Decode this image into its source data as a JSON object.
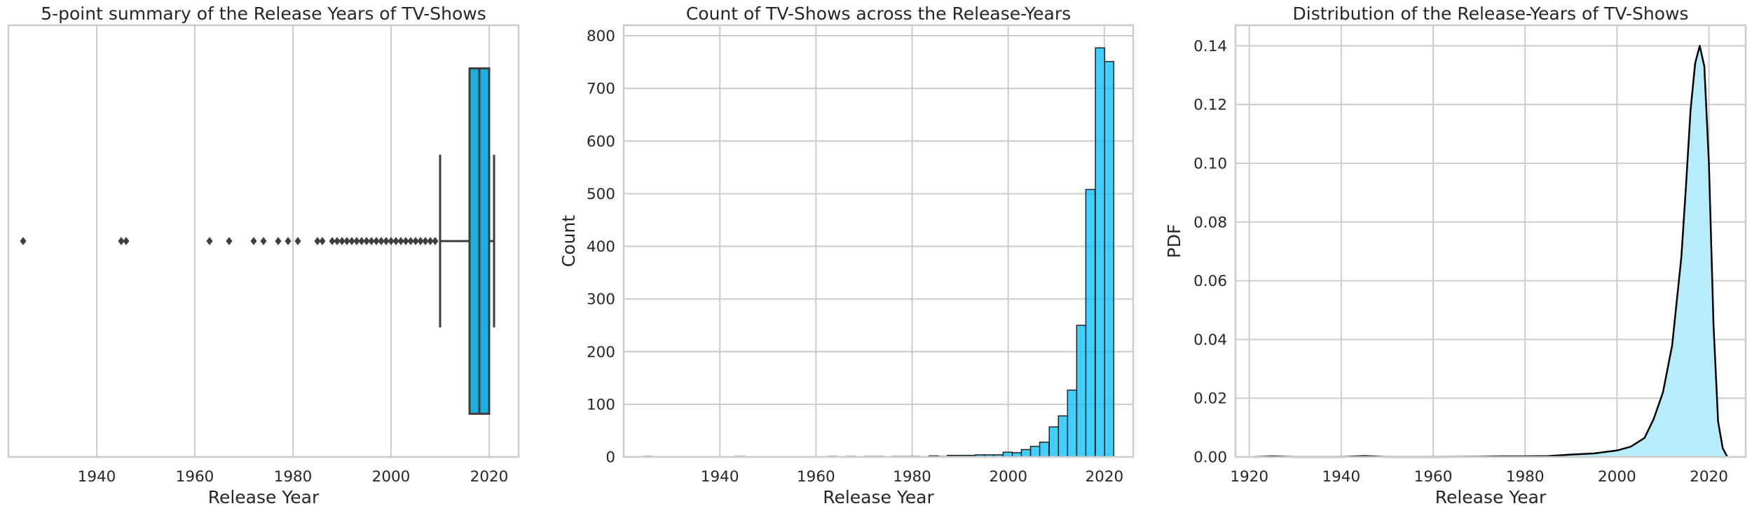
{
  "chart_data": [
    {
      "type": "box",
      "title": "5-point summary of the Release Years of TV-Shows",
      "xlabel": "Release Year",
      "ylabel": "",
      "xlim": [
        1922,
        2026
      ],
      "xticks": [
        1940,
        1960,
        1980,
        2000,
        2020
      ],
      "grid": true,
      "color": "#1aafe0",
      "box": {
        "q1": 2016,
        "median": 2018,
        "q3": 2020,
        "whisker_low": 2010,
        "whisker_high": 2021
      },
      "outliers": [
        1925,
        1945,
        1946,
        1963,
        1967,
        1972,
        1974,
        1977,
        1979,
        1981,
        1985,
        1986,
        1988,
        1989,
        1990,
        1991,
        1992,
        1993,
        1994,
        1995,
        1996,
        1997,
        1998,
        1999,
        2000,
        2001,
        2002,
        2003,
        2004,
        2005,
        2006,
        2007,
        2008,
        2009
      ]
    },
    {
      "type": "bar",
      "title": "Count of TV-Shows across the Release-Years",
      "xlabel": "Release Year",
      "ylabel": "Count",
      "xlim": [
        1920,
        2026
      ],
      "ylim": [
        0,
        820
      ],
      "xticks": [
        1940,
        1960,
        1980,
        2000,
        2020
      ],
      "yticks": [
        0,
        100,
        200,
        300,
        400,
        500,
        600,
        700,
        800
      ],
      "grid": true,
      "color": "#00bfff",
      "bin_width": 1.92,
      "bins": [
        {
          "x": 1925.0,
          "count": 1
        },
        {
          "x": 1944.2,
          "count": 1
        },
        {
          "x": 1963.4,
          "count": 1
        },
        {
          "x": 1967.2,
          "count": 1
        },
        {
          "x": 1971.1,
          "count": 1
        },
        {
          "x": 1973.0,
          "count": 1
        },
        {
          "x": 1976.8,
          "count": 1
        },
        {
          "x": 1978.8,
          "count": 1
        },
        {
          "x": 1980.7,
          "count": 1
        },
        {
          "x": 1984.5,
          "count": 2
        },
        {
          "x": 1986.4,
          "count": 1
        },
        {
          "x": 1988.3,
          "count": 3
        },
        {
          "x": 1990.3,
          "count": 3
        },
        {
          "x": 1992.2,
          "count": 3
        },
        {
          "x": 1994.1,
          "count": 4
        },
        {
          "x": 1996.0,
          "count": 4
        },
        {
          "x": 1997.9,
          "count": 4
        },
        {
          "x": 1999.9,
          "count": 9
        },
        {
          "x": 2001.8,
          "count": 8
        },
        {
          "x": 2003.7,
          "count": 14
        },
        {
          "x": 2005.6,
          "count": 20
        },
        {
          "x": 2007.5,
          "count": 28
        },
        {
          "x": 2009.5,
          "count": 57
        },
        {
          "x": 2011.4,
          "count": 78
        },
        {
          "x": 2013.3,
          "count": 127
        },
        {
          "x": 2015.2,
          "count": 250
        },
        {
          "x": 2017.1,
          "count": 508
        },
        {
          "x": 2019.1,
          "count": 777
        },
        {
          "x": 2021.0,
          "count": 751
        }
      ]
    },
    {
      "type": "area",
      "title": "Distribution of the Release-Years of TV-Shows",
      "xlabel": "Release Year",
      "ylabel": "PDF",
      "xlim": [
        1917,
        2028
      ],
      "ylim": [
        0,
        0.147
      ],
      "xticks": [
        1920,
        1940,
        1960,
        1980,
        2000,
        2020
      ],
      "yticks": [
        0.0,
        0.02,
        0.04,
        0.06,
        0.08,
        0.1,
        0.12,
        0.14
      ],
      "ytick_labels": [
        "0.00",
        "0.02",
        "0.04",
        "0.06",
        "0.08",
        "0.10",
        "0.12",
        "0.14"
      ],
      "grid": true,
      "fill_color": "#b7ecfb",
      "line_color": "#000000",
      "x": [
        1921,
        1925,
        1930,
        1940,
        1945,
        1950,
        1960,
        1970,
        1975,
        1980,
        1985,
        1990,
        1995,
        2000,
        2003,
        2006,
        2008,
        2010,
        2012,
        2014,
        2015,
        2016,
        2017,
        2018,
        2019,
        2020,
        2021,
        2022,
        2023,
        2024
      ],
      "y": [
        0.0,
        0.0002,
        0.0,
        0.0,
        0.0003,
        0.0,
        0.0,
        0.0001,
        0.0002,
        0.0002,
        0.0003,
        0.0008,
        0.0012,
        0.0022,
        0.0035,
        0.0065,
        0.013,
        0.022,
        0.038,
        0.068,
        0.092,
        0.118,
        0.134,
        0.14,
        0.133,
        0.1,
        0.045,
        0.012,
        0.003,
        0.0
      ]
    }
  ]
}
